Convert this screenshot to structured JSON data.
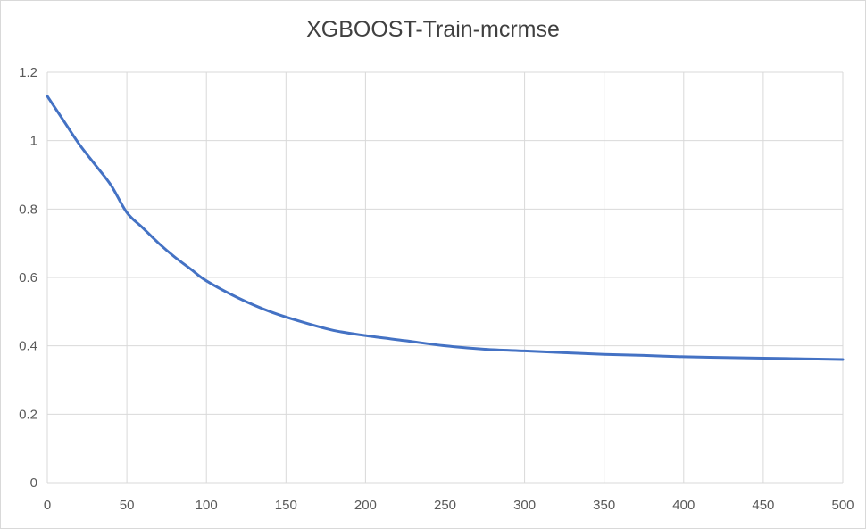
{
  "chart_data": {
    "type": "line",
    "title": "XGBOOST-Train-mcrmse",
    "xlabel": "",
    "ylabel": "",
    "xlim": [
      0,
      500
    ],
    "ylim": [
      0,
      1.2
    ],
    "x_ticks": [
      "0",
      "50",
      "100",
      "150",
      "200",
      "250",
      "300",
      "350",
      "400",
      "450",
      "500"
    ],
    "y_ticks": [
      "0",
      "0.2",
      "0.4",
      "0.6",
      "0.8",
      "1",
      "1.2"
    ],
    "grid": true,
    "legend": "none",
    "series": [
      {
        "color": "#4472c4",
        "x": [
          0,
          10,
          20,
          30,
          40,
          50,
          60,
          70,
          80,
          90,
          100,
          120,
          140,
          160,
          180,
          200,
          225,
          250,
          275,
          300,
          325,
          350,
          375,
          400,
          425,
          450,
          475,
          500
        ],
        "y": [
          1.13,
          1.06,
          0.99,
          0.93,
          0.87,
          0.79,
          0.745,
          0.7,
          0.66,
          0.625,
          0.59,
          0.54,
          0.5,
          0.47,
          0.445,
          0.43,
          0.415,
          0.4,
          0.39,
          0.385,
          0.38,
          0.375,
          0.372,
          0.368,
          0.366,
          0.364,
          0.362,
          0.36
        ]
      }
    ]
  }
}
